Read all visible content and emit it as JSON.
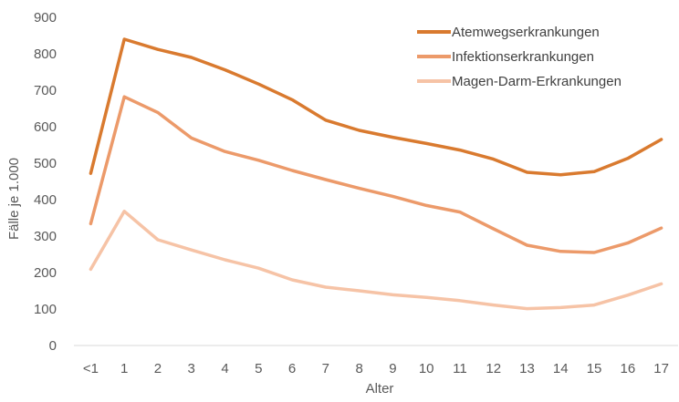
{
  "chart_data": {
    "type": "line",
    "title": "",
    "xlabel": "Alter",
    "ylabel": "Fälle je 1.000",
    "categories": [
      "<1",
      "1",
      "2",
      "3",
      "4",
      "5",
      "6",
      "7",
      "8",
      "9",
      "10",
      "11",
      "12",
      "13",
      "14",
      "15",
      "16",
      "17"
    ],
    "ylim": [
      0,
      900
    ],
    "yticks": [
      0,
      100,
      200,
      300,
      400,
      500,
      600,
      700,
      800,
      900
    ],
    "grid": false,
    "legend_position": "top-right",
    "series": [
      {
        "name": "Atemwegserkrankungen",
        "color": "#d97a2f",
        "values": [
          472,
          840,
          812,
          790,
          756,
          717,
          674,
          618,
          590,
          571,
          554,
          536,
          511,
          475,
          468,
          477,
          513,
          565
        ]
      },
      {
        "name": "Infektionserkrankungen",
        "color": "#ec9a6a",
        "values": [
          334,
          682,
          639,
          569,
          532,
          508,
          480,
          455,
          431,
          409,
          384,
          366,
          320,
          275,
          258,
          255,
          281,
          322
        ]
      },
      {
        "name": "Magen-Darm-Erkrankungen",
        "color": "#f6c3a6",
        "values": [
          209,
          368,
          290,
          262,
          235,
          212,
          180,
          160,
          150,
          139,
          132,
          123,
          111,
          101,
          104,
          111,
          138,
          169
        ]
      }
    ]
  }
}
